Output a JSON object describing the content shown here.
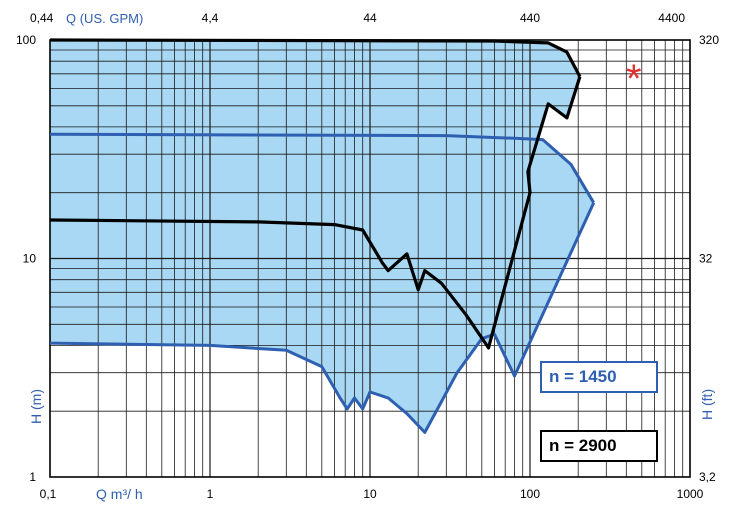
{
  "chart_data": {
    "type": "area",
    "x_scale": "log",
    "y_scale": "log",
    "xlim": [
      0.1,
      1000
    ],
    "ylim": [
      1,
      100
    ],
    "grid": true,
    "x_ticks_bottom": [
      "0,1",
      "1",
      "10",
      "100",
      "1000"
    ],
    "x_ticks_top": [
      "0,44",
      "4,4",
      "44",
      "440",
      "4400"
    ],
    "y_ticks_left": [
      "1",
      "10",
      "100"
    ],
    "y_ticks_right": [
      "3,2",
      "32",
      "320"
    ],
    "xlabel_bottom": "Q m³/ h",
    "xlabel_top": "Q (US. GPM)",
    "ylabel_left": "H (m)",
    "ylabel_right": "H (ft)",
    "marker": "*",
    "series": [
      {
        "name": "n = 1450",
        "color": "#2e5fb0",
        "fill": "#a8d8f3",
        "upper": [
          [
            0.1,
            37
          ],
          [
            30,
            36.5
          ],
          [
            80,
            35.5
          ],
          [
            120,
            35
          ],
          [
            180,
            27
          ],
          [
            250,
            18
          ]
        ],
        "lower": [
          [
            0.1,
            4.1
          ],
          [
            1,
            4
          ],
          [
            3,
            3.8
          ],
          [
            5,
            3.2
          ],
          [
            6.5,
            2.3
          ],
          [
            7.2,
            2.05
          ],
          [
            8,
            2.3
          ],
          [
            9,
            2.05
          ],
          [
            10,
            2.45
          ],
          [
            13,
            2.3
          ],
          [
            17,
            1.95
          ],
          [
            22,
            1.6
          ],
          [
            35,
            3
          ],
          [
            50,
            4.3
          ],
          [
            60,
            4.5
          ],
          [
            80,
            2.9
          ],
          [
            250,
            18
          ]
        ]
      },
      {
        "name": "n = 2900",
        "color": "#000000",
        "fill": "#a8d8f3",
        "upper": [
          [
            0.1,
            100
          ],
          [
            60,
            99
          ],
          [
            130,
            97
          ],
          [
            170,
            88
          ],
          [
            205,
            68
          ]
        ],
        "lower": [
          [
            0.1,
            15
          ],
          [
            2,
            14.7
          ],
          [
            6,
            14.3
          ],
          [
            9,
            13.5
          ],
          [
            12,
            9.5
          ],
          [
            13,
            8.8
          ],
          [
            17,
            10.5
          ],
          [
            20,
            7.2
          ],
          [
            22,
            8.8
          ],
          [
            28,
            7.7
          ],
          [
            40,
            5.5
          ],
          [
            55,
            3.9
          ],
          [
            100,
            20
          ],
          [
            97,
            25
          ],
          [
            130,
            51
          ],
          [
            170,
            44
          ],
          [
            205,
            68
          ]
        ]
      }
    ],
    "legend": [
      {
        "label": "n = 1450",
        "placement": "bottom-right"
      },
      {
        "label": "n = 2900",
        "placement": "bottom-right"
      }
    ]
  }
}
